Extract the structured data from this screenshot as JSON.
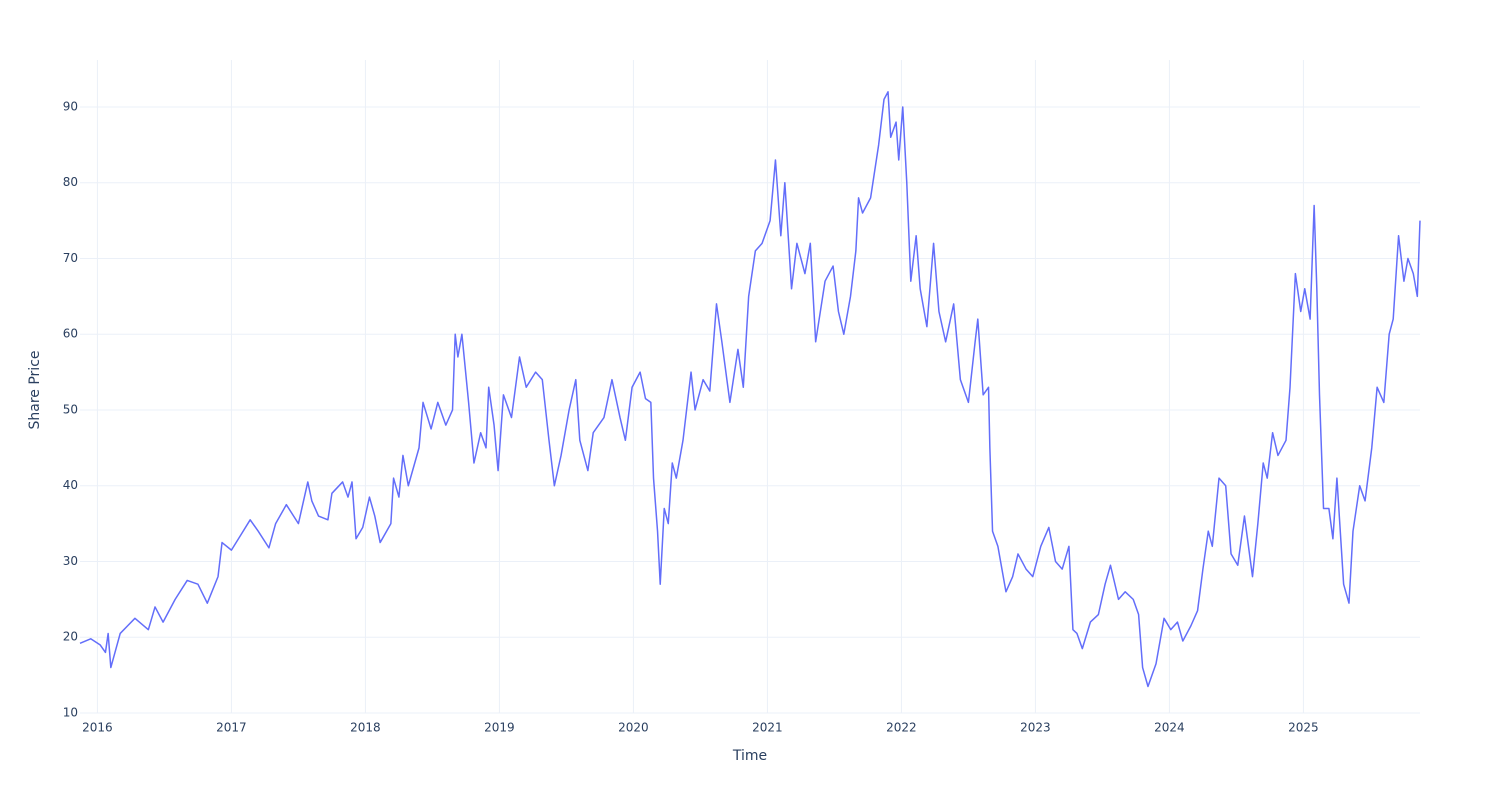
{
  "chart_data": {
    "type": "line",
    "xlabel": "Time",
    "ylabel": "Share Price",
    "color": "#636efa",
    "grid": true,
    "xlim": [
      2015.87,
      2025.87
    ],
    "xticks": [
      2016,
      2017,
      2018,
      2019,
      2020,
      2021,
      2022,
      2023,
      2024,
      2025
    ],
    "ylim": [
      10,
      96.2
    ],
    "yticks": [
      10,
      20,
      30,
      40,
      50,
      60,
      70,
      80,
      90
    ],
    "x": [
      2015.87,
      2015.95,
      2016.02,
      2016.06,
      2016.08,
      2016.1,
      2016.17,
      2016.28,
      2016.38,
      2016.43,
      2016.49,
      2016.58,
      2016.67,
      2016.75,
      2016.82,
      2016.9,
      2016.93,
      2017.0,
      2017.07,
      2017.14,
      2017.2,
      2017.28,
      2017.33,
      2017.41,
      2017.5,
      2017.57,
      2017.6,
      2017.65,
      2017.72,
      2017.75,
      2017.83,
      2017.87,
      2017.9,
      2017.93,
      2017.98,
      2018.03,
      2018.07,
      2018.11,
      2018.19,
      2018.21,
      2018.25,
      2018.28,
      2018.32,
      2018.4,
      2018.43,
      2018.49,
      2018.54,
      2018.6,
      2018.65,
      2018.67,
      2018.69,
      2018.72,
      2018.77,
      2018.81,
      2018.86,
      2018.9,
      2018.92,
      2018.96,
      2018.99,
      2019.03,
      2019.09,
      2019.15,
      2019.2,
      2019.27,
      2019.32,
      2019.37,
      2019.41,
      2019.46,
      2019.52,
      2019.57,
      2019.6,
      2019.66,
      2019.7,
      2019.78,
      2019.84,
      2019.9,
      2019.94,
      2019.99,
      2020.05,
      2020.09,
      2020.13,
      2020.15,
      2020.18,
      2020.2,
      2020.23,
      2020.26,
      2020.29,
      2020.32,
      2020.37,
      2020.43,
      2020.46,
      2020.52,
      2020.57,
      2020.62,
      2020.66,
      2020.72,
      2020.78,
      2020.82,
      2020.86,
      2020.91,
      2020.96,
      2021.02,
      2021.06,
      2021.1,
      2021.13,
      2021.18,
      2021.22,
      2021.28,
      2021.32,
      2021.36,
      2021.43,
      2021.49,
      2021.53,
      2021.57,
      2021.62,
      2021.66,
      2021.68,
      2021.71,
      2021.77,
      2021.83,
      2021.87,
      2021.9,
      2021.92,
      2021.96,
      2021.98,
      2022.01,
      2022.04,
      2022.07,
      2022.11,
      2022.14,
      2022.19,
      2022.24,
      2022.28,
      2022.33,
      2022.39,
      2022.44,
      2022.5,
      2022.55,
      2022.57,
      2022.61,
      2022.65,
      2022.66,
      2022.68,
      2022.72,
      2022.78,
      2022.83,
      2022.87,
      2022.93,
      2022.98,
      2023.04,
      2023.1,
      2023.15,
      2023.2,
      2023.25,
      2023.28,
      2023.31,
      2023.35,
      2023.41,
      2023.47,
      2023.52,
      2023.56,
      2023.62,
      2023.67,
      2023.73,
      2023.77,
      2023.8,
      2023.84,
      2023.9,
      2023.96,
      2024.01,
      2024.06,
      2024.1,
      2024.16,
      2024.21,
      2024.25,
      2024.29,
      2024.32,
      2024.37,
      2024.42,
      2024.46,
      2024.51,
      2024.56,
      2024.62,
      2024.66,
      2024.7,
      2024.73,
      2024.77,
      2024.81,
      2024.87,
      2024.9,
      2024.94,
      2024.98,
      2025.01,
      2025.05,
      2025.08,
      2025.1,
      2025.12,
      2025.15,
      2025.19,
      2025.22,
      2025.25,
      2025.3,
      2025.34,
      2025.37,
      2025.42,
      2025.46,
      2025.51,
      2025.55,
      2025.6,
      2025.64,
      2025.67,
      2025.71,
      2025.75,
      2025.78,
      2025.82,
      2025.85,
      2025.87
    ],
    "values": [
      19.2,
      19.8,
      19,
      18,
      20.5,
      16,
      20.5,
      22.5,
      21,
      24,
      22,
      25,
      27.5,
      27,
      24.5,
      28,
      32.5,
      31.5,
      33.5,
      35.5,
      34,
      31.8,
      35,
      37.5,
      35,
      40.5,
      38,
      36,
      35.5,
      39,
      40.5,
      38.5,
      40.5,
      33,
      34.5,
      38.5,
      36,
      32.5,
      35,
      41,
      38.5,
      44,
      40,
      45,
      51,
      47.5,
      51,
      48,
      50,
      60,
      57,
      60,
      51,
      43,
      47,
      45,
      53,
      48,
      42,
      52,
      49,
      57,
      53,
      55,
      54,
      46,
      40,
      44,
      50,
      54,
      46,
      42,
      47,
      49,
      54,
      49,
      46,
      53,
      55,
      51.5,
      51,
      41,
      34,
      27,
      37,
      35,
      43,
      41,
      46,
      55,
      50,
      54,
      52.5,
      64,
      59,
      51,
      58,
      53,
      65,
      71,
      72,
      75,
      83,
      73,
      80,
      66,
      72,
      68,
      72,
      59,
      67,
      69,
      63,
      60,
      65,
      71,
      78,
      76,
      78,
      85,
      91,
      92,
      86,
      88,
      83,
      90,
      80,
      67,
      73,
      66,
      61,
      72,
      63,
      59,
      64,
      54,
      51,
      59,
      62,
      52,
      53,
      45,
      34,
      32,
      26,
      28,
      31,
      29,
      28,
      32,
      34.5,
      30,
      29,
      32,
      21,
      20.5,
      18.5,
      22,
      23,
      27,
      29.5,
      25,
      26,
      25,
      23,
      16,
      13.5,
      16.5,
      22.5,
      21,
      22,
      19.5,
      21.5,
      23.5,
      29,
      34,
      32,
      41,
      40,
      31,
      29.5,
      36,
      28,
      35,
      43,
      41,
      47,
      44,
      46,
      53,
      68,
      63,
      66,
      62,
      77,
      66,
      52,
      37,
      37,
      33,
      41,
      27,
      24.5,
      34,
      40,
      38,
      45,
      53,
      51,
      60,
      62,
      73,
      67,
      70,
      68,
      65,
      75
    ]
  }
}
